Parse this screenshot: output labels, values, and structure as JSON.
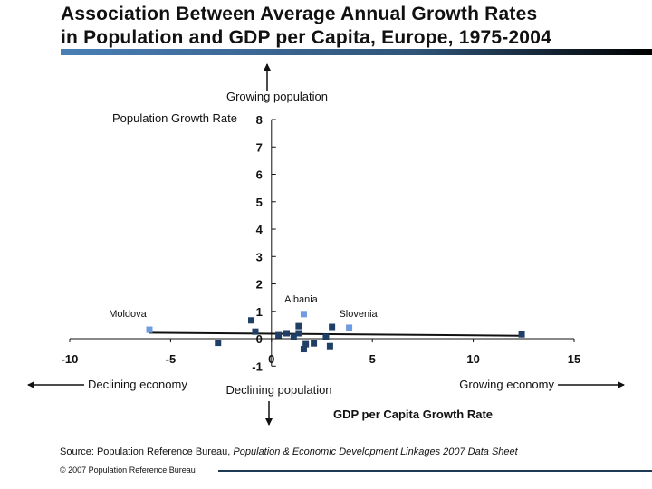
{
  "title_line1": "Association Between Average Annual Growth Rates",
  "title_line2": "in Population and GDP per Capita, Europe, 1975-2004",
  "source_prefix": "Source: Population Reference Bureau, ",
  "source_title": "Population & Economic Development Linkages 2007 Data Sheet",
  "copyright": "© 2007 Population Reference Bureau",
  "colors": {
    "highlight": "#6f9be0",
    "point": "#1f3f66",
    "title_bar": "#4a7fb5"
  },
  "chart_data": {
    "type": "scatter",
    "xlabel": "GDP per Capita Growth Rate",
    "ylabel": "Population Growth Rate",
    "xlim": [
      -10,
      15
    ],
    "ylim": [
      -1,
      8
    ],
    "xticks": [
      "-10",
      "-5",
      "0",
      "5",
      "10",
      "15"
    ],
    "yticks": [
      "-1",
      "0",
      "1",
      "2",
      "3",
      "4",
      "5",
      "6",
      "7",
      "8"
    ],
    "grid": false,
    "annotations": {
      "up": "Growing population",
      "down": "Declining population",
      "left": "Declining economy",
      "right": "Growing economy"
    },
    "points": [
      {
        "x": -6.05,
        "y": 0.33,
        "label": "Moldova",
        "highlight": true
      },
      {
        "x": -2.65,
        "y": -0.15
      },
      {
        "x": -1.0,
        "y": 0.67
      },
      {
        "x": -0.8,
        "y": 0.26
      },
      {
        "x": 0.35,
        "y": 0.13
      },
      {
        "x": 0.75,
        "y": 0.2
      },
      {
        "x": 1.1,
        "y": 0.07
      },
      {
        "x": 1.35,
        "y": 0.46
      },
      {
        "x": 1.35,
        "y": 0.2
      },
      {
        "x": 1.6,
        "y": 0.9,
        "label": "Albania",
        "highlight": true
      },
      {
        "x": 1.7,
        "y": -0.2
      },
      {
        "x": 1.6,
        "y": -0.38
      },
      {
        "x": 2.1,
        "y": -0.17
      },
      {
        "x": 2.7,
        "y": 0.07
      },
      {
        "x": 2.9,
        "y": -0.27
      },
      {
        "x": 3.0,
        "y": 0.43
      },
      {
        "x": 3.85,
        "y": 0.4,
        "label": "Slovenia",
        "highlight": true
      },
      {
        "x": 12.4,
        "y": 0.16
      }
    ],
    "trendline": [
      [
        -6.05,
        0.22
      ],
      [
        12.4,
        0.11
      ]
    ]
  }
}
